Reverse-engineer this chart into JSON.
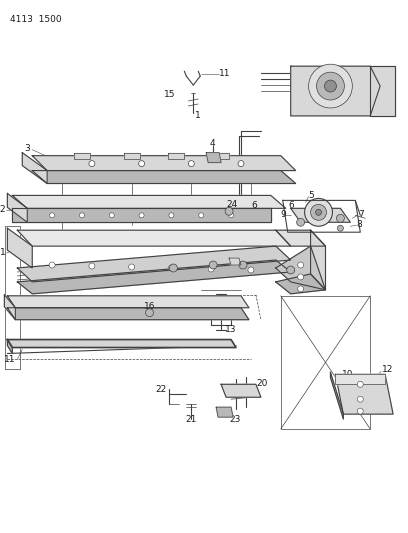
{
  "title": "4113  1500",
  "bg_color": "#ffffff",
  "fig_width": 4.08,
  "fig_height": 5.33,
  "dpi": 100,
  "line_color": "#404040",
  "label_color": "#1a1a1a",
  "label_fontsize": 6.5,
  "header_fontsize": 6.5,
  "lw_thin": 0.5,
  "lw_med": 0.8,
  "lw_thick": 1.2,
  "gray_light": "#d8d8d8",
  "gray_med": "#b8b8b8",
  "gray_dark": "#909090"
}
